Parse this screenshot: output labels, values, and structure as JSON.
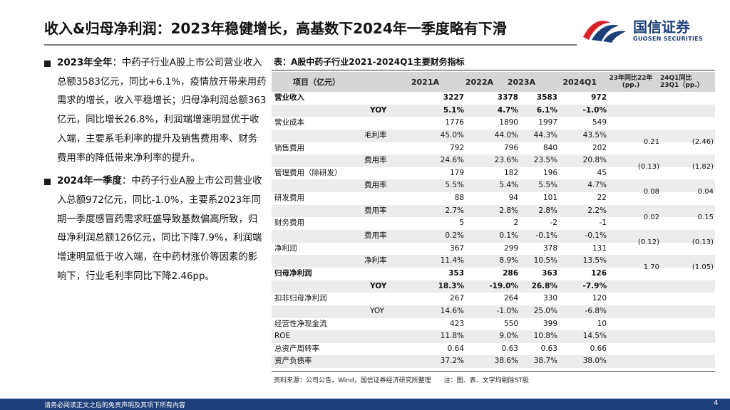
{
  "header": {
    "title": "收入&归母净利润：2023年稳健增长，高基数下2024年一季度略有下滑",
    "logo_cn": "国信证券",
    "logo_en": "GUOSEN SECURITIES"
  },
  "bullets": [
    {
      "lead": "2023年全年",
      "text": "：中药子行业A股上市公司营业收入总额3583亿元，同比+6.1%，疫情放开带来用药需求的增长，收入平稳增长；归母净利润总额363亿元，同比增长26.8%，利润端增速明显优于收入端，主要系毛利率的提升及销售费用率、财务费用率的降低带来净利率的提升。"
    },
    {
      "lead": "2024年一季度",
      "text": "：中药子行业A股上市公司营业收入总额972亿元，同比-1.0%，主要系2023年同期一季度感冒药需求旺盛导致基数偏高所致，归母净利润总额126亿元，同比下降7.9%，利润端增速明显低于收入端，在中药材涨价等因素的影响下，行业毛利率同比下降2.46pp。"
    }
  ],
  "table": {
    "title": "表：A股中药子行业2021-2024Q1主要财务指标",
    "headers": {
      "item": "项目（亿元）",
      "y2021": "2021A",
      "y2022": "2022A",
      "y2023": "2023A",
      "q1": "2024Q1",
      "d1_line1": "23年同比22年",
      "d1_line2": "(pp.)",
      "d2_line1": "24Q1同比",
      "d2_line2": "23Q1（pp.）"
    },
    "rows": [
      {
        "label": "营业收入",
        "sub": "",
        "v2021": "3227",
        "v2022": "3378",
        "v2023": "3583",
        "vq1": "972",
        "d1": "",
        "d2": "",
        "bold": true
      },
      {
        "label": "",
        "sub": "YOY",
        "v2021": "5.1%",
        "v2022": "4.7%",
        "v2023": "6.1%",
        "vq1": "-1.0%",
        "d1": "",
        "d2": "",
        "bold": true
      },
      {
        "label": "营业成本",
        "sub": "",
        "v2021": "1776",
        "v2022": "1890",
        "v2023": "1997",
        "vq1": "549",
        "d1": "",
        "d2": "",
        "bold": false
      },
      {
        "label": "",
        "sub": "毛利率",
        "v2021": "45.0%",
        "v2022": "44.0%",
        "v2023": "44.3%",
        "vq1": "43.5%",
        "d1": "0.21",
        "d2": "(2.46)",
        "bold": false
      },
      {
        "label": "销售费用",
        "sub": "",
        "v2021": "792",
        "v2022": "796",
        "v2023": "840",
        "vq1": "202",
        "d1": "",
        "d2": "",
        "bold": false
      },
      {
        "label": "",
        "sub": "费用率",
        "v2021": "24.6%",
        "v2022": "23.6%",
        "v2023": "23.5%",
        "vq1": "20.8%",
        "d1": "(0.13)",
        "d2": "(1.82)",
        "bold": false
      },
      {
        "label": "管理费用（除研发）",
        "sub": "",
        "v2021": "179",
        "v2022": "182",
        "v2023": "196",
        "vq1": "45",
        "d1": "",
        "d2": "",
        "bold": false
      },
      {
        "label": "",
        "sub": "费用率",
        "v2021": "5.5%",
        "v2022": "5.4%",
        "v2023": "5.5%",
        "vq1": "4.7%",
        "d1": "0.08",
        "d2": "0.04",
        "bold": false
      },
      {
        "label": "研发费用",
        "sub": "",
        "v2021": "88",
        "v2022": "94",
        "v2023": "101",
        "vq1": "22",
        "d1": "",
        "d2": "",
        "bold": false
      },
      {
        "label": "",
        "sub": "费用率",
        "v2021": "2.7%",
        "v2022": "2.8%",
        "v2023": "2.8%",
        "vq1": "2.2%",
        "d1": "0.02",
        "d2": "0.15",
        "bold": false
      },
      {
        "label": "财务费用",
        "sub": "",
        "v2021": "5",
        "v2022": "2",
        "v2023": "-2",
        "vq1": "-1",
        "d1": "",
        "d2": "",
        "bold": false
      },
      {
        "label": "",
        "sub": "费用率",
        "v2021": "0.2%",
        "v2022": "0.1%",
        "v2023": "-0.1%",
        "vq1": "-0.1%",
        "d1": "(0.12)",
        "d2": "(0.13)",
        "bold": false
      },
      {
        "label": "净利润",
        "sub": "",
        "v2021": "367",
        "v2022": "299",
        "v2023": "378",
        "vq1": "131",
        "d1": "",
        "d2": "",
        "bold": false
      },
      {
        "label": "",
        "sub": "净利率",
        "v2021": "11.4%",
        "v2022": "8.9%",
        "v2023": "10.5%",
        "vq1": "13.5%",
        "d1": "1.70",
        "d2": "(1.05)",
        "bold": false
      },
      {
        "label": "归母净利润",
        "sub": "",
        "v2021": "353",
        "v2022": "286",
        "v2023": "363",
        "vq1": "126",
        "d1": "",
        "d2": "",
        "bold": true
      },
      {
        "label": "",
        "sub": "YOY",
        "v2021": "18.3%",
        "v2022": "-19.0%",
        "v2023": "26.8%",
        "vq1": "-7.9%",
        "d1": "",
        "d2": "",
        "bold": true
      },
      {
        "label": "扣非归母净利润",
        "sub": "",
        "v2021": "267",
        "v2022": "264",
        "v2023": "330",
        "vq1": "120",
        "d1": "",
        "d2": "",
        "bold": false
      },
      {
        "label": "",
        "sub": "YOY",
        "v2021": "14.6%",
        "v2022": "-1.0%",
        "v2023": "25.0%",
        "vq1": "-6.8%",
        "d1": "",
        "d2": "",
        "bold": false
      },
      {
        "label": "经营性净现金流",
        "sub": "",
        "v2021": "423",
        "v2022": "550",
        "v2023": "399",
        "vq1": "10",
        "d1": "",
        "d2": "",
        "bold": false
      },
      {
        "label": "ROE",
        "sub": "",
        "v2021": "11.8%",
        "v2022": "9.0%",
        "v2023": "10.8%",
        "vq1": "14.5%",
        "d1": "",
        "d2": "",
        "bold": false
      },
      {
        "label": "总资产周转率",
        "sub": "",
        "v2021": "0.64",
        "v2022": "0.63",
        "v2023": "0.63",
        "vq1": "0.66",
        "d1": "",
        "d2": "",
        "bold": false
      },
      {
        "label": "资产负债率",
        "sub": "",
        "v2021": "37.2%",
        "v2022": "38.6%",
        "v2023": "38.7%",
        "vq1": "38.0%",
        "d1": "",
        "d2": "",
        "bold": false
      }
    ],
    "source": "资料来源：公司公告，Wind，国信证券经济研究所整理　　注：图、表、文字均剔除ST股"
  },
  "footer": {
    "disclaimer": "请务必阅读正文之后的免责声明及其项下所有内容",
    "page": "4"
  },
  "colors": {
    "brand_navy": "#1d3e78",
    "brand_red": "#d6232b",
    "header_bg": "#d6d6d6",
    "alt_row_bg": "#ececec"
  }
}
